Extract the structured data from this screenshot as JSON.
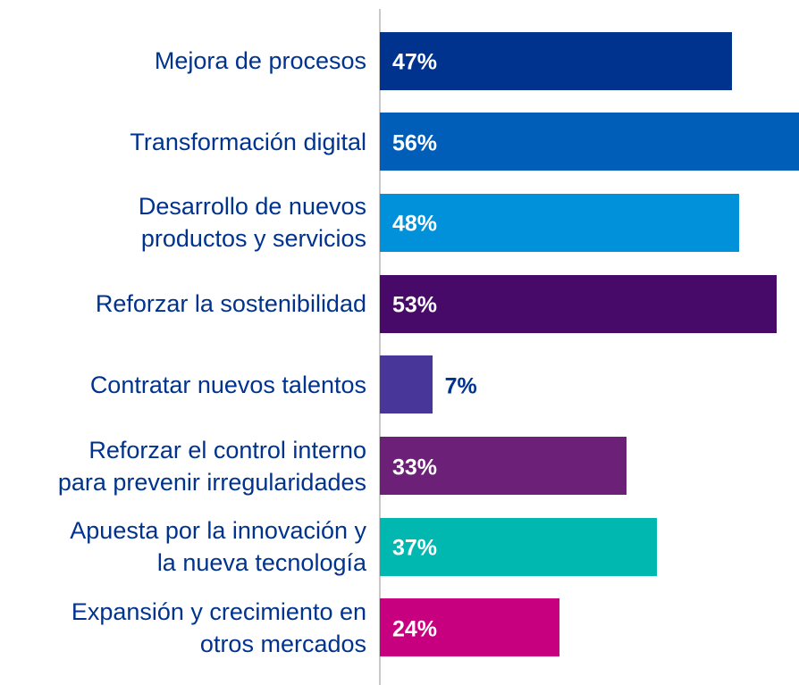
{
  "chart_data": {
    "type": "bar",
    "orientation": "horizontal",
    "categories": [
      "Mejora de procesos",
      "Transformación digital",
      "Desarrollo de nuevos\nproductos y servicios",
      "Reforzar la sostenibilidad",
      "Contratar nuevos talentos",
      "Reforzar el control interno\npara prevenir irregularidades",
      "Apuesta por la innovación y\nla nueva tecnología",
      "Expansión y crecimiento en\notros mercados"
    ],
    "values": [
      47,
      56,
      48,
      53,
      7,
      33,
      37,
      24
    ],
    "value_labels": [
      "47%",
      "56%",
      "48%",
      "53%",
      "7%",
      "33%",
      "37%",
      "24%"
    ],
    "colors": [
      "#00338d",
      "#005eb8",
      "#0091da",
      "#470a68",
      "#483698",
      "#6d2077",
      "#00b8b0",
      "#c6007e"
    ],
    "xlim": [
      0,
      56
    ]
  }
}
